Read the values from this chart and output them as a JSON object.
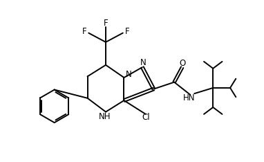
{
  "background_color": "#ffffff",
  "line_color": "#000000",
  "line_width": 1.4,
  "font_size": 8.5,
  "bond_color": "#000000",
  "xlim": [
    0,
    10
  ],
  "ylim": [
    0,
    7
  ]
}
